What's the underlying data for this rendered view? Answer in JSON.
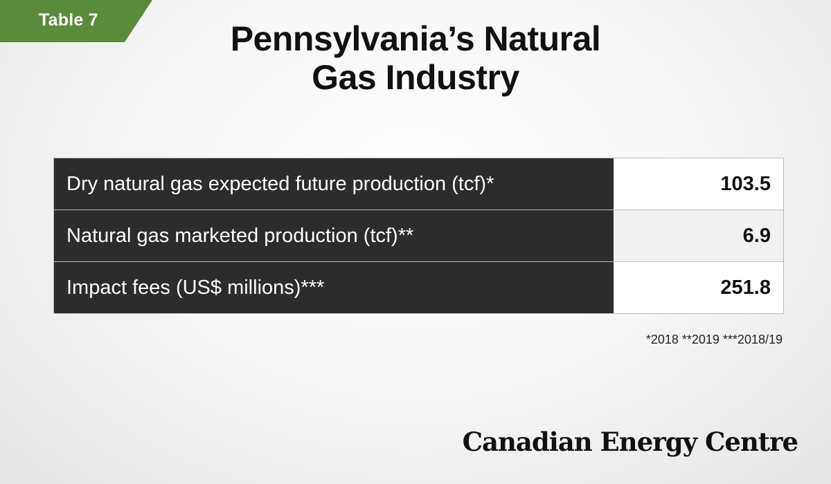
{
  "tag": {
    "label": "Table 7",
    "color": "#5a8a3a"
  },
  "title": {
    "line1": "Pennsylvania’s Natural",
    "line2": "Gas Industry"
  },
  "chart_data": {
    "type": "table",
    "title": "Pennsylvania’s Natural Gas Industry",
    "rows": [
      {
        "label": "Dry natural gas expected future production (tcf)*",
        "value": "103.5"
      },
      {
        "label": "Natural gas marketed production (tcf)**",
        "value": "6.9"
      },
      {
        "label": "Impact fees (US$ millions)***",
        "value": "251.8"
      }
    ]
  },
  "footnote": "*2018 **2019 ***2018/19",
  "brand": "Canadian Energy Centre",
  "colors": {
    "label_bg": "#2c2c2c",
    "value_bg": "#ffffff",
    "accent": "#5a8a3a"
  }
}
